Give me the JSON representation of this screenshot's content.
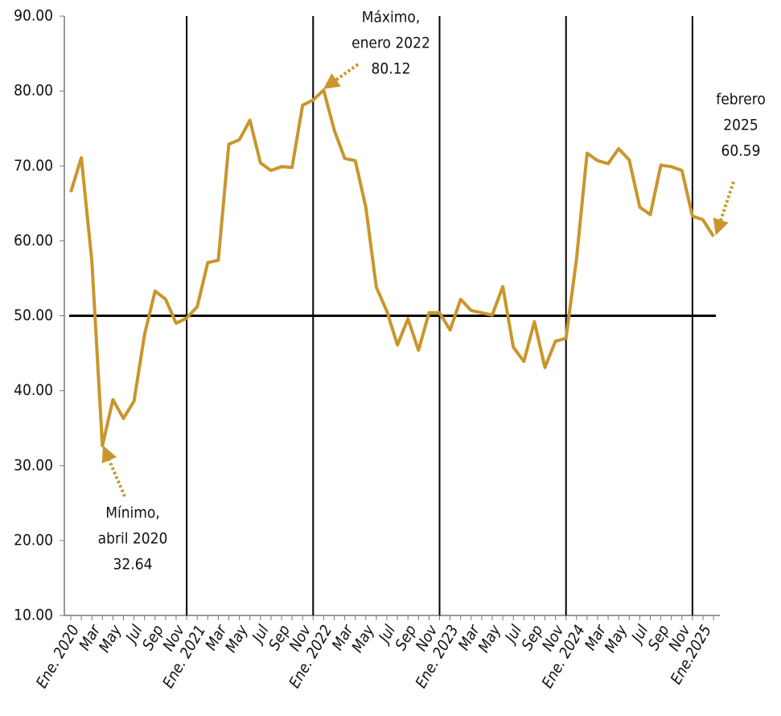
{
  "chart_data": {
    "type": "line",
    "categories": [
      "Ene. 2020",
      null,
      "Mar",
      null,
      "May",
      null,
      "Jul",
      null,
      "Sep",
      null,
      "Nov",
      null,
      "Ene. 2021",
      null,
      "Mar",
      null,
      "May",
      null,
      "Jul",
      null,
      "Sep",
      null,
      "Nov",
      null,
      "Ene. 2022",
      null,
      "Mar",
      null,
      "May",
      null,
      "Jul",
      null,
      "Sep",
      null,
      "Nov",
      null,
      "Ene. 2023",
      null,
      "Mar",
      null,
      "May",
      null,
      "Jul",
      null,
      "Sep",
      null,
      "Nov",
      null,
      "Ene. 2024",
      null,
      "Mar",
      null,
      "May",
      null,
      "Jul",
      null,
      "Sep",
      null,
      "Nov",
      null,
      "Ene.2025",
      null
    ],
    "series": [
      {
        "color": "#c9962c",
        "values": [
          66.5,
          71.1,
          57.3,
          32.64,
          38.8,
          36.3,
          38.6,
          47.5,
          53.3,
          52.2,
          49.0,
          49.7,
          51.2,
          57.1,
          57.4,
          72.9,
          73.5,
          76.1,
          70.4,
          69.4,
          69.9,
          69.8,
          78.1,
          78.8,
          80.12,
          74.8,
          71.0,
          70.7,
          64.5,
          53.8,
          50.6,
          46.1,
          49.6,
          45.4,
          50.4,
          50.4,
          48.1,
          52.2,
          50.7,
          50.4,
          50.1,
          53.9,
          45.8,
          43.9,
          49.2,
          43.1,
          46.6,
          47.0,
          57.6,
          71.7,
          70.7,
          70.3,
          72.3,
          70.8,
          64.5,
          63.5,
          70.1,
          69.9,
          69.4,
          63.3,
          62.8,
          60.59
        ]
      }
    ],
    "ylim": [
      10,
      90
    ],
    "yticks": [
      {
        "value": 10,
        "label": "10.00"
      },
      {
        "value": 20,
        "label": "20.00"
      },
      {
        "value": 30,
        "label": "30.00"
      },
      {
        "value": 40,
        "label": "40.00"
      },
      {
        "value": 50,
        "label": "50.00"
      },
      {
        "value": 60,
        "label": "60.00"
      },
      {
        "value": 70,
        "label": "70.00"
      },
      {
        "value": 80,
        "label": "80.00"
      },
      {
        "value": 90,
        "label": "90.00"
      }
    ],
    "reference_line": 50,
    "annotations": [
      {
        "lines": [
          "Mínimo,",
          "abril 2020",
          "32.64"
        ]
      },
      {
        "lines": [
          "Máximo,",
          "enero 2022",
          "80.12"
        ]
      },
      {
        "lines": [
          "febrero",
          "2025",
          "60.59"
        ]
      }
    ]
  }
}
